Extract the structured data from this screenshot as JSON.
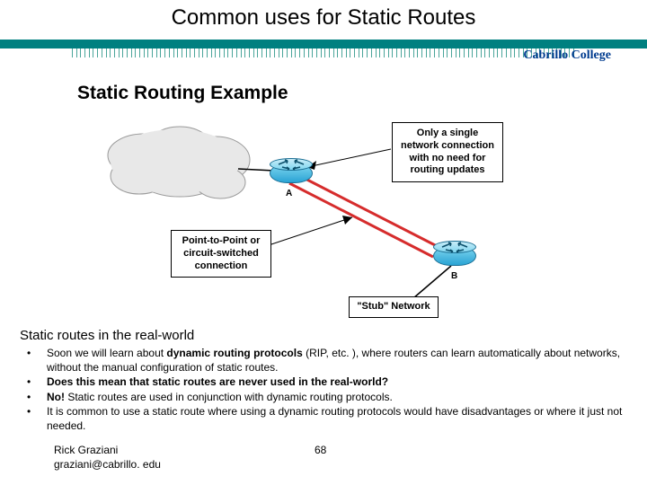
{
  "title": "Common uses for Static Routes",
  "college": "Cabrillo College",
  "example_title": "Static Routing Example",
  "diagram": {
    "router_a_label": "A",
    "router_b_label": "B",
    "callout_right": "Only a single network connection with no need for routing updates",
    "callout_left": "Point-to-Point or circuit-switched connection",
    "stub_label": "\"Stub\" Network",
    "colors": {
      "router_fill_top": "#7fd6f0",
      "router_fill_bottom": "#2aa3d4",
      "router_border": "#1c6f94",
      "link_red": "#d62c2c",
      "cloud_fill": "#e8e8e8",
      "cloud_stroke": "#9a9a9a",
      "arrow_head": "#000000"
    }
  },
  "section_heading": "Static routes in the real-world",
  "bullets": {
    "b1_pre": "Soon we will learn about ",
    "b1_bold": "dynamic routing protocols",
    "b1_post": " (RIP, etc. ), where routers can learn automatically about networks, without the manual configuration of static routes.",
    "b2": "Does this mean that static routes are never used in the real-world?",
    "b3_bold": "No!",
    "b3_post": "  Static routes are used in conjunction with dynamic routing protocols.",
    "b4": "It is common to use a static route where using a dynamic routing protocols would have disadvantages or where it just not needed."
  },
  "footer": {
    "author_name": "Rick Graziani",
    "author_email": "graziani@cabrillo. edu",
    "page": "68"
  }
}
